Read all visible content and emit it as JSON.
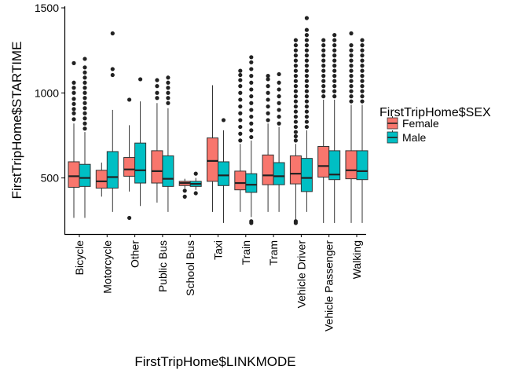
{
  "chart_data": {
    "type": "box",
    "xlabel": "FirstTripHome$LINKMODE",
    "ylabel": "FirstTripHome$STARTIME",
    "ylim": [
      170,
      1500
    ],
    "yticks": [
      500,
      1000,
      1500
    ],
    "grid": false,
    "legend": {
      "title": "FirstTripHome$SEX",
      "position": "right",
      "items": [
        {
          "name": "Female",
          "color": "#F8766D"
        },
        {
          "name": "Male",
          "color": "#00BFC4"
        }
      ]
    },
    "categories": [
      "Bicycle",
      "Motorcycle",
      "Other",
      "Public Bus",
      "School Bus",
      "Taxi",
      "Train",
      "Tram",
      "Vehicle Driver",
      "Vehicle Passenger",
      "Walking"
    ],
    "series": [
      {
        "name": "Female",
        "color": "#F8766D",
        "boxes": [
          {
            "q1": 445,
            "median": 510,
            "q3": 595,
            "whisker_low": 265,
            "whisker_high": 820,
            "outliers": [
              845,
              880,
              905,
              935,
              965,
              1000,
              1030,
              1060,
              1175
            ]
          },
          {
            "q1": 440,
            "median": 480,
            "q3": 545,
            "whisker_low": 390,
            "whisker_high": 590,
            "outliers": []
          },
          {
            "q1": 510,
            "median": 550,
            "q3": 620,
            "whisker_low": 420,
            "whisker_high": 810,
            "outliers": [
              265,
              960
            ]
          },
          {
            "q1": 470,
            "median": 540,
            "q3": 660,
            "whisker_low": 355,
            "whisker_high": 940,
            "outliers": [
              970,
              1000,
              1040,
              1075
            ]
          },
          {
            "q1": 455,
            "median": 470,
            "q3": 480,
            "whisker_low": 440,
            "whisker_high": 495,
            "outliers": [
              390,
              425
            ]
          },
          {
            "q1": 480,
            "median": 600,
            "q3": 735,
            "whisker_low": 300,
            "whisker_high": 1045,
            "outliers": []
          },
          {
            "q1": 430,
            "median": 470,
            "q3": 540,
            "whisker_low": 300,
            "whisker_high": 700,
            "outliers": [
              720,
              760,
              800,
              840,
              880,
              920,
              960,
              1000,
              1040,
              1075,
              1105,
              1130
            ]
          },
          {
            "q1": 460,
            "median": 515,
            "q3": 635,
            "whisker_low": 300,
            "whisker_high": 820,
            "outliers": [
              840,
              880,
              920,
              960,
              1000,
              1040,
              1080,
              1100
            ]
          },
          {
            "q1": 465,
            "median": 525,
            "q3": 630,
            "whisker_low": 235,
            "whisker_high": 700,
            "outliers": [
              235,
              245,
              720,
              745,
              770,
              800,
              830,
              860,
              890,
              920,
              950,
              980,
              1010,
              1040,
              1070,
              1100,
              1130,
              1160,
              1190,
              1220,
              1250,
              1280,
              1310
            ]
          },
          {
            "q1": 505,
            "median": 570,
            "q3": 685,
            "whisker_low": 235,
            "whisker_high": 960,
            "outliers": [
              980,
              1010,
              1040,
              1070,
              1100,
              1130,
              1160,
              1190,
              1220,
              1250,
              1280,
              1310
            ]
          },
          {
            "q1": 495,
            "median": 545,
            "q3": 660,
            "whisker_low": 235,
            "whisker_high": 930,
            "outliers": [
              950,
              980,
              1010,
              1040,
              1070,
              1100,
              1130,
              1160,
              1190,
              1220,
              1250,
              1280,
              1350
            ]
          }
        ]
      },
      {
        "name": "Male",
        "color": "#00BFC4",
        "boxes": [
          {
            "q1": 450,
            "median": 500,
            "q3": 580,
            "whisker_low": 265,
            "whisker_high": 770,
            "outliers": [
              790,
              820,
              850,
              880,
              910,
              940,
              970,
              1000,
              1030,
              1060,
              1090,
              1120,
              1150,
              1200
            ]
          },
          {
            "q1": 440,
            "median": 505,
            "q3": 655,
            "whisker_low": 300,
            "whisker_high": 900,
            "outliers": [
              1105,
              1140,
              1350
            ]
          },
          {
            "q1": 470,
            "median": 545,
            "q3": 705,
            "whisker_low": 335,
            "whisker_high": 950,
            "outliers": [
              1080
            ]
          },
          {
            "q1": 450,
            "median": 495,
            "q3": 630,
            "whisker_low": 300,
            "whisker_high": 910,
            "outliers": [
              940,
              970,
              1000,
              1030,
              1060,
              1090
            ]
          },
          {
            "q1": 450,
            "median": 465,
            "q3": 480,
            "whisker_low": 430,
            "whisker_high": 500,
            "outliers": [
              410,
              525
            ]
          },
          {
            "q1": 455,
            "median": 515,
            "q3": 595,
            "whisker_low": 235,
            "whisker_high": 780,
            "outliers": [
              840
            ]
          },
          {
            "q1": 415,
            "median": 460,
            "q3": 525,
            "whisker_low": 270,
            "whisker_high": 720,
            "outliers": [
              235,
              245,
              740,
              780,
              820,
              860,
              900,
              940,
              980,
              1020,
              1060,
              1100,
              1140,
              1180,
              1210
            ]
          },
          {
            "q1": 460,
            "median": 510,
            "q3": 590,
            "whisker_low": 300,
            "whisker_high": 800,
            "outliers": [
              820,
              860,
              900,
              940,
              980,
              1020,
              1060,
              1110
            ]
          },
          {
            "q1": 420,
            "median": 500,
            "q3": 615,
            "whisker_low": 300,
            "whisker_high": 780,
            "outliers": [
              800,
              830,
              860,
              890,
              920,
              950,
              980,
              1010,
              1040,
              1070,
              1100,
              1130,
              1160,
              1190,
              1220,
              1250,
              1280,
              1310,
              1340,
              1370,
              1440
            ]
          },
          {
            "q1": 490,
            "median": 520,
            "q3": 660,
            "whisker_low": 235,
            "whisker_high": 960,
            "outliers": [
              980,
              1010,
              1040,
              1070,
              1100,
              1130,
              1160,
              1190,
              1220,
              1250,
              1280,
              1310,
              1340
            ]
          },
          {
            "q1": 490,
            "median": 540,
            "q3": 660,
            "whisker_low": 235,
            "whisker_high": 930,
            "outliers": [
              950,
              980,
              1010,
              1040,
              1070,
              1100,
              1130,
              1160,
              1190,
              1220,
              1250,
              1280,
              1310
            ]
          }
        ]
      }
    ]
  }
}
